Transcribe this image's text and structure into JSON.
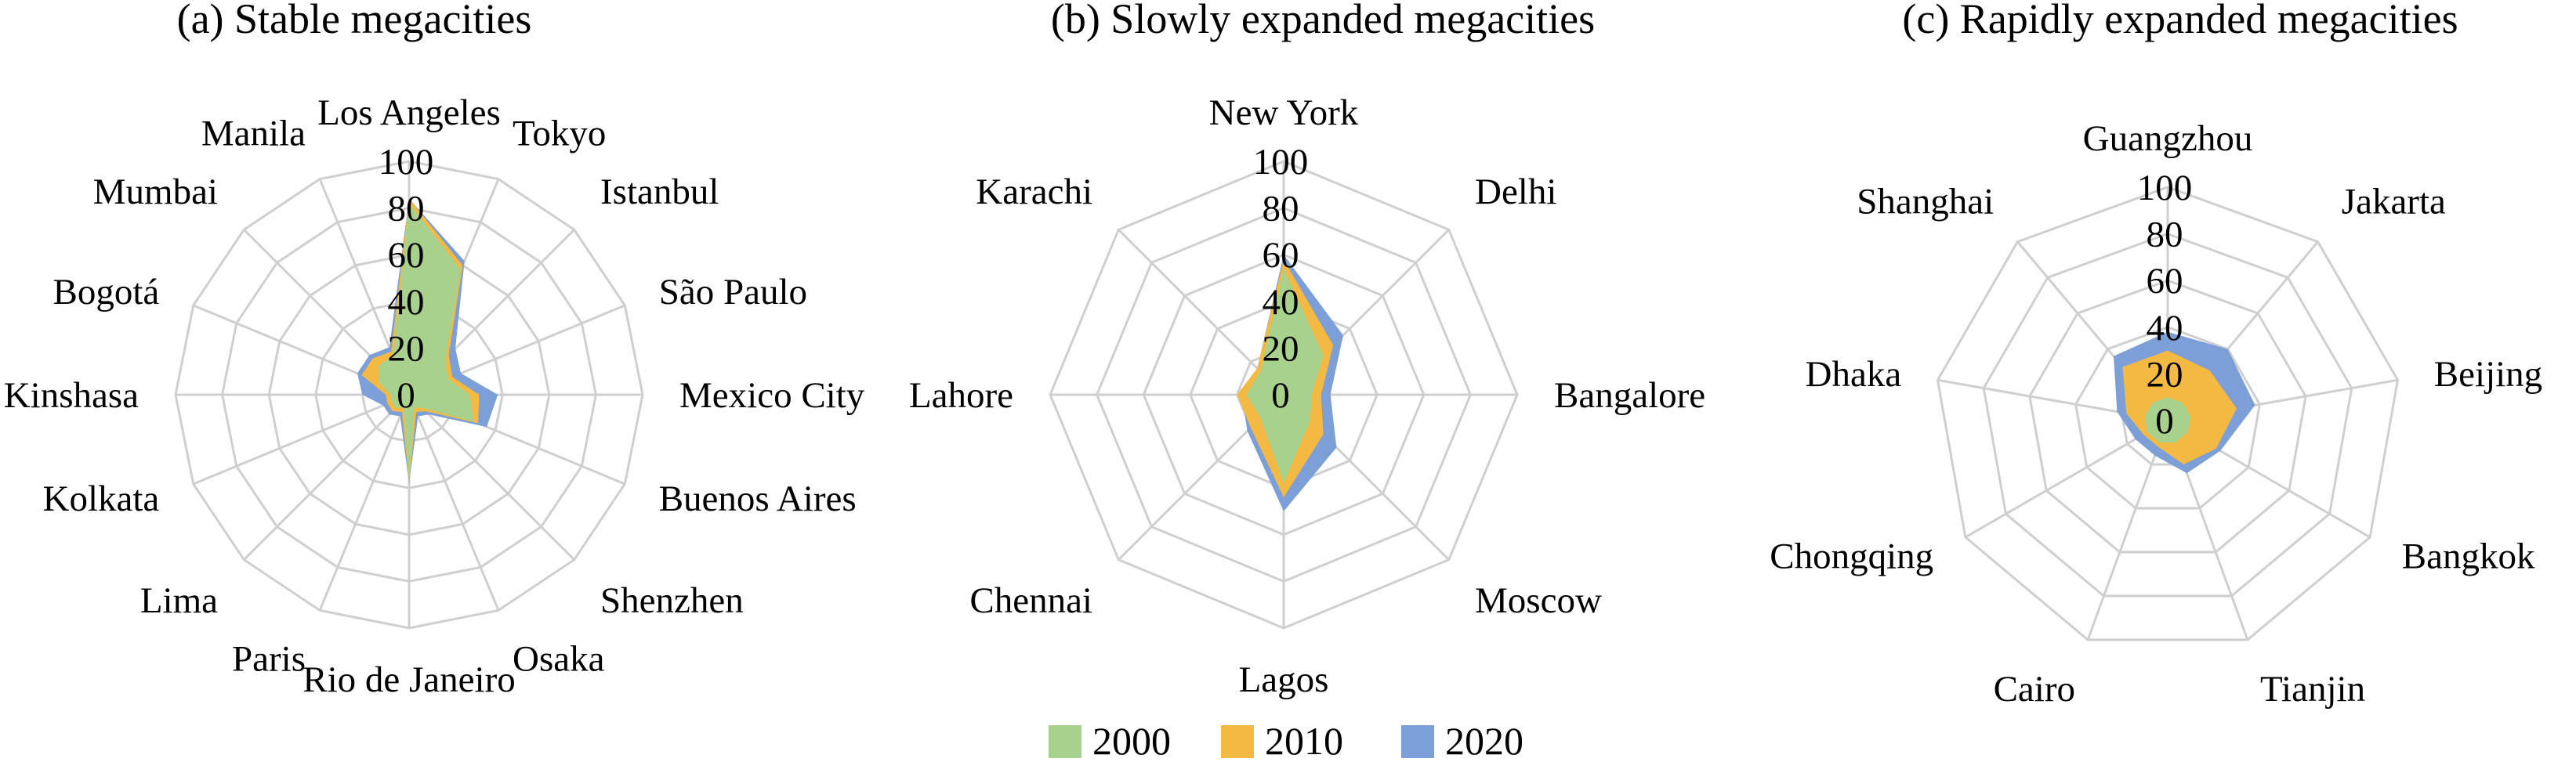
{
  "legend": [
    {
      "label": "2000",
      "color": "#a9d18e"
    },
    {
      "label": "2010",
      "color": "#f4b942"
    },
    {
      "label": "2020",
      "color": "#7b9fd6"
    }
  ],
  "chart_data": [
    {
      "type": "radar",
      "title": "(a) Stable megacities",
      "rlim": [
        0,
        100
      ],
      "ticks": [
        "0",
        "20",
        "40",
        "60",
        "80",
        "100"
      ],
      "grid": true,
      "categories": [
        "Los Angeles",
        "Tokyo",
        "Istanbul",
        "São Paulo",
        "Mexico City",
        "Buenos Aires",
        "Shenzhen",
        "Osaka",
        "Rio de Janeiro",
        "Paris",
        "Lima",
        "Kolkata",
        "Kinshasa",
        "Bogotá",
        "Mumbai",
        "Manila"
      ],
      "series": [
        {
          "name": "2000",
          "values": [
            82,
            58,
            22,
            18,
            26,
            30,
            8,
            6,
            38,
            6,
            8,
            8,
            8,
            14,
            18,
            18
          ]
        },
        {
          "name": "2010",
          "values": [
            84,
            60,
            24,
            20,
            30,
            32,
            10,
            8,
            38,
            8,
            10,
            10,
            10,
            22,
            22,
            20
          ]
        },
        {
          "name": "2020",
          "values": [
            84,
            62,
            28,
            24,
            38,
            36,
            12,
            10,
            38,
            10,
            12,
            12,
            20,
            24,
            24,
            22
          ]
        }
      ]
    },
    {
      "type": "radar",
      "title": "(b) Slowly expanded megacities",
      "rlim": [
        0,
        100
      ],
      "ticks": [
        "0",
        "20",
        "40",
        "60",
        "80",
        "100"
      ],
      "grid": true,
      "categories": [
        "New York",
        "Delhi",
        "Bangalore",
        "Moscow",
        "Lagos",
        "Chennai",
        "Lahore",
        "Karachi"
      ],
      "series": [
        {
          "name": "2000",
          "values": [
            54,
            24,
            12,
            16,
            38,
            14,
            16,
            14
          ]
        },
        {
          "name": "2010",
          "values": [
            58,
            30,
            16,
            24,
            44,
            20,
            20,
            16
          ]
        },
        {
          "name": "2020",
          "values": [
            60,
            36,
            20,
            32,
            50,
            22,
            18,
            16
          ]
        }
      ]
    },
    {
      "type": "radar",
      "title": "(c) Rapidly expanded megacities",
      "rlim": [
        0,
        100
      ],
      "ticks": [
        "0",
        "20",
        "40",
        "60",
        "80",
        "100"
      ],
      "grid": true,
      "categories": [
        "Guangzhou",
        "Jakarta",
        "Beijing",
        "Bangkok",
        "Tianjin",
        "Cairo",
        "Chongqing",
        "Dhaka",
        "Shanghai"
      ],
      "series": [
        {
          "name": "2000",
          "values": [
            10,
            10,
            10,
            10,
            10,
            10,
            10,
            10,
            10
          ]
        },
        {
          "name": "2010",
          "values": [
            30,
            28,
            30,
            24,
            20,
            12,
            12,
            18,
            30
          ]
        },
        {
          "name": "2020",
          "values": [
            38,
            40,
            38,
            26,
            24,
            16,
            16,
            22,
            36
          ]
        }
      ]
    }
  ]
}
